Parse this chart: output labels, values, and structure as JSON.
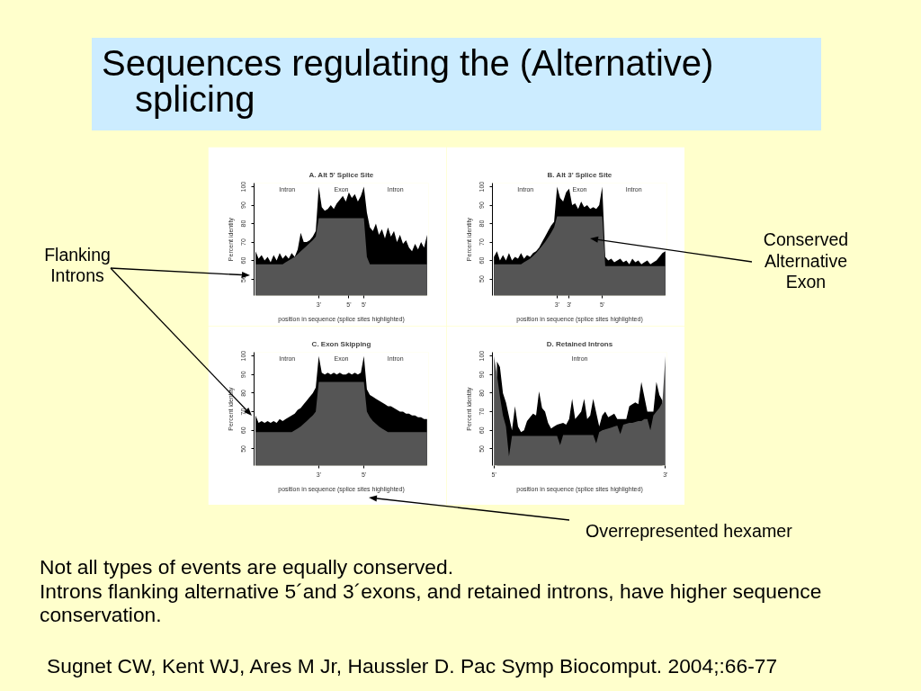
{
  "chart_data": [
    {
      "type": "other",
      "title": "Sequences regulating the (Alternative) splicing",
      "annotations": [
        "Flanking Introns",
        "Conserved Alternative Exon",
        "Overrepresented hexamer",
        "Not all types of events are equally conserved.",
        "Introns flanking alternative 5´and 3´exons, and retained introns, have higher sequence conservation.",
        "Sugnet CW, Kent WJ, Ares M Jr, Haussler D. Pac Symp Biocomput. 2004;:66-77"
      ]
    },
    {
      "type": "area",
      "title": "A. Alt 5' Splice Site",
      "xlabel": "position in sequence (splice sites highlighted)",
      "ylabel": "Percent identity",
      "ylim": [
        41,
        102
      ],
      "yticks": [
        50,
        60,
        70,
        80,
        90,
        100
      ],
      "annotations": [
        "Intron",
        "Exon",
        "Intron"
      ],
      "categories": [
        null,
        null,
        null,
        null,
        null,
        null,
        null,
        null,
        null,
        null,
        null,
        null,
        null,
        null,
        null,
        null,
        null,
        null,
        null,
        null,
        null,
        "3'",
        null,
        null,
        null,
        null,
        null,
        null,
        null,
        null,
        null,
        "5'",
        null,
        null,
        null,
        null,
        "5'",
        null,
        null,
        null,
        null,
        null,
        null,
        null,
        null,
        null,
        null,
        null,
        null,
        null,
        null,
        null,
        null,
        null,
        null,
        null,
        null,
        null
      ],
      "series": [
        {
          "color": "#000000",
          "values": [
            65,
            61,
            63,
            60,
            62,
            59,
            63,
            60,
            64,
            61,
            63,
            61,
            64,
            62,
            66,
            75,
            70,
            70,
            71,
            73,
            76,
            100,
            89,
            87,
            88,
            90,
            88,
            91,
            93,
            95,
            92,
            97,
            94,
            96,
            92,
            95,
            100,
            86,
            78,
            76,
            80,
            74,
            77,
            72,
            78,
            73,
            76,
            70,
            74,
            69,
            71,
            67,
            65,
            69,
            66,
            70,
            67,
            74
          ]
        },
        {
          "color": "#555555",
          "values": [
            58,
            58,
            58,
            58,
            58,
            58,
            58,
            58,
            58,
            58,
            59,
            60,
            61,
            62,
            63.5,
            65,
            66.5,
            68,
            69.5,
            71,
            73,
            83,
            83,
            83,
            83,
            83,
            83,
            83,
            83,
            83,
            83,
            83,
            83,
            83,
            83,
            83,
            83,
            62,
            58,
            58,
            58,
            58,
            58,
            58,
            58,
            58,
            58,
            58,
            58,
            58,
            58,
            58,
            58,
            58,
            58,
            58,
            58,
            58
          ]
        }
      ]
    },
    {
      "type": "area",
      "title": "B. Alt 3' Splice Site",
      "xlabel": "position in sequence (splice sites highlighted)",
      "ylabel": "Percent identity",
      "ylim": [
        41,
        102
      ],
      "yticks": [
        50,
        60,
        70,
        80,
        90,
        100
      ],
      "annotations": [
        "Intron",
        "Exon",
        "Intron"
      ],
      "categories": [
        null,
        null,
        null,
        null,
        null,
        null,
        null,
        null,
        null,
        null,
        null,
        null,
        null,
        null,
        null,
        null,
        null,
        null,
        null,
        null,
        null,
        "3'",
        null,
        null,
        null,
        "3'",
        null,
        null,
        null,
        null,
        null,
        null,
        null,
        null,
        null,
        null,
        "5'",
        null,
        null,
        null,
        null,
        null,
        null,
        null,
        null,
        null,
        null,
        null,
        null,
        null,
        null,
        null,
        null,
        null,
        null,
        null,
        null,
        null
      ],
      "series": [
        {
          "color": "#000000",
          "values": [
            62,
            65,
            60,
            63,
            60,
            64,
            60,
            62,
            61,
            64,
            61,
            63,
            62,
            64,
            65,
            67,
            70,
            73,
            76,
            79,
            81,
            100,
            94,
            92,
            97,
            99,
            90,
            91,
            88,
            92,
            89,
            90,
            88,
            89,
            88,
            90,
            100,
            62,
            60,
            61,
            59,
            60,
            61,
            59,
            60,
            58,
            61,
            59,
            60,
            58,
            59,
            60,
            58,
            59,
            60,
            62,
            64,
            65
          ]
        },
        {
          "color": "#555555",
          "values": [
            58,
            58,
            58,
            58,
            58,
            58,
            58,
            58,
            58,
            58,
            59,
            60,
            61,
            62.5,
            64,
            66,
            68,
            70,
            72.5,
            75,
            78,
            84,
            84,
            84,
            84,
            84,
            84,
            84,
            84,
            84,
            84,
            84,
            84,
            84,
            84,
            84,
            84,
            57,
            57,
            57,
            57,
            57,
            57,
            57,
            57,
            57,
            57,
            57,
            57,
            57,
            57,
            57,
            57,
            57,
            57,
            57,
            57,
            57
          ]
        }
      ]
    },
    {
      "type": "area",
      "title": "C. Exon Skipping",
      "xlabel": "position in sequence (splice sites highlighted)",
      "ylabel": "Percent identity",
      "ylim": [
        41,
        102
      ],
      "yticks": [
        50,
        60,
        70,
        80,
        90,
        100
      ],
      "annotations": [
        "Intron",
        "Exon",
        "Intron"
      ],
      "categories": [
        null,
        null,
        null,
        null,
        null,
        null,
        null,
        null,
        null,
        null,
        null,
        null,
        null,
        null,
        null,
        null,
        null,
        null,
        null,
        null,
        null,
        "3'",
        null,
        null,
        null,
        null,
        null,
        null,
        null,
        null,
        null,
        null,
        null,
        null,
        null,
        null,
        "5'",
        null,
        null,
        null,
        null,
        null,
        null,
        null,
        null,
        null,
        null,
        null,
        null,
        null,
        null,
        null,
        null,
        null,
        null,
        null,
        null,
        null
      ],
      "series": [
        {
          "color": "#000000",
          "values": [
            68,
            64,
            65,
            64,
            65,
            64,
            65,
            64,
            66,
            65,
            66,
            67,
            68,
            69,
            71,
            72,
            74,
            76,
            78,
            80,
            83,
            100,
            91,
            90,
            91,
            90,
            91,
            90,
            91,
            90,
            90,
            91,
            90,
            91,
            90,
            91,
            100,
            82,
            79,
            78,
            77,
            76,
            75,
            74,
            73,
            73,
            72,
            71,
            70,
            70,
            69,
            69,
            68,
            68,
            67,
            67,
            66,
            66
          ]
        },
        {
          "color": "#555555",
          "values": [
            59,
            59,
            59,
            59,
            59,
            59,
            59,
            59,
            59,
            59,
            59,
            59,
            59,
            60,
            61,
            62,
            63.5,
            65,
            66.5,
            68,
            70,
            86,
            86,
            86,
            86,
            86,
            86,
            86,
            86,
            86,
            86,
            86,
            86,
            86,
            86,
            86,
            86,
            70,
            67,
            65,
            63.5,
            62,
            61,
            60,
            59,
            59,
            59,
            59,
            59,
            59,
            59,
            59,
            59,
            59,
            59,
            59,
            59,
            59
          ]
        }
      ]
    },
    {
      "type": "area",
      "title": "D. Retained Introns",
      "xlabel": "position in sequence (splice sites highlighted)",
      "ylabel": "Percent identity",
      "ylim": [
        41,
        102
      ],
      "yticks": [
        50,
        60,
        70,
        80,
        90,
        100
      ],
      "annotations": [
        "Intron"
      ],
      "categories": [
        "5'",
        null,
        null,
        null,
        null,
        null,
        null,
        null,
        null,
        null,
        null,
        null,
        null,
        null,
        null,
        null,
        null,
        null,
        null,
        null,
        null,
        null,
        null,
        null,
        null,
        null,
        null,
        null,
        null,
        null,
        null,
        null,
        null,
        null,
        null,
        null,
        null,
        null,
        null,
        null,
        null,
        null,
        null,
        null,
        null,
        null,
        null,
        null,
        null,
        null,
        null,
        null,
        null,
        null,
        null,
        null,
        null,
        "3'"
      ],
      "series": [
        {
          "color": "#000000",
          "values": [
            null,
            97,
            94,
            80,
            75,
            null,
            60,
            73,
            62,
            59,
            60,
            65,
            67,
            69,
            68,
            81,
            72,
            70,
            64,
            61,
            62,
            63,
            null,
            64,
            63,
            66,
            77,
            66,
            68,
            70,
            77,
            66,
            68,
            77,
            null,
            62,
            68,
            70,
            67,
            68,
            69,
            66,
            null,
            66,
            66,
            73,
            74,
            75,
            74,
            86,
            78,
            70,
            null,
            70,
            86,
            79,
            76,
            null
          ]
        },
        {
          "color": "#555555",
          "values": [
            100,
            90,
            78,
            68,
            62,
            46,
            57,
            57,
            57,
            57,
            57,
            57,
            57,
            57,
            57,
            57,
            57,
            57,
            57,
            57,
            57,
            57,
            52,
            57.5,
            57.5,
            57.5,
            57.5,
            57.5,
            57.5,
            57.5,
            57.5,
            57.5,
            57.5,
            57.5,
            53,
            59,
            60,
            60.5,
            61,
            61.5,
            62,
            62.5,
            58,
            63,
            63.5,
            64,
            64,
            64.5,
            65,
            65,
            66,
            66,
            60,
            68,
            70,
            72,
            75,
            100
          ]
        }
      ]
    }
  ]
}
